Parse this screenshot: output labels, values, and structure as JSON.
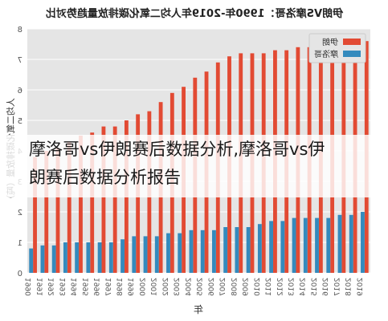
{
  "chart_data": {
    "type": "bar",
    "title": "伊朗VS摩洛哥：1990年-2019年人均二氧化碳排放量趋势对比",
    "xlabel": "年",
    "ylabel": "人均二氧化碳排放量（吨）",
    "ylim": [
      0,
      8
    ],
    "yticks": [
      "0",
      "1",
      "2",
      "3",
      "4",
      "5",
      "6",
      "7",
      "8"
    ],
    "categories": [
      "2019",
      "2018",
      "2017",
      "2016",
      "2015",
      "2014",
      "2013",
      "2012",
      "2011",
      "2010",
      "2009",
      "2008",
      "2007",
      "2006",
      "2005",
      "2004",
      "2003",
      "2002",
      "2001",
      "2000",
      "1999",
      "1998",
      "1997",
      "1996",
      "1995",
      "1994",
      "1993",
      "1992",
      "1991",
      "1990"
    ],
    "series": [
      {
        "name": "伊朗",
        "color": "#e24a33",
        "values": [
          7.6,
          7.8,
          7.8,
          7.5,
          7.5,
          7.4,
          7.4,
          7.3,
          7.3,
          7.2,
          7.2,
          7.2,
          7.1,
          6.9,
          6.6,
          6.4,
          6.1,
          5.9,
          5.6,
          5.3,
          5.2,
          5.0,
          4.8,
          4.8,
          4.6,
          4.5,
          4.3,
          4.1,
          4.0,
          3.8
        ]
      },
      {
        "name": "摩洛哥",
        "color": "#348abd",
        "values": [
          2.0,
          1.9,
          1.9,
          1.8,
          1.8,
          1.8,
          1.8,
          1.7,
          1.7,
          1.6,
          1.5,
          1.5,
          1.5,
          1.4,
          1.4,
          1.4,
          1.3,
          1.3,
          1.2,
          1.2,
          1.2,
          1.1,
          1.0,
          1.0,
          1.0,
          1.0,
          1.0,
          0.9,
          0.9,
          0.8
        ]
      }
    ],
    "grid": true,
    "legend": "top-right"
  },
  "overlay": {
    "line1": "摩洛哥vs伊朗赛后数据分析,摩洛哥vs伊",
    "line2": "朗赛后数据分析报告"
  }
}
